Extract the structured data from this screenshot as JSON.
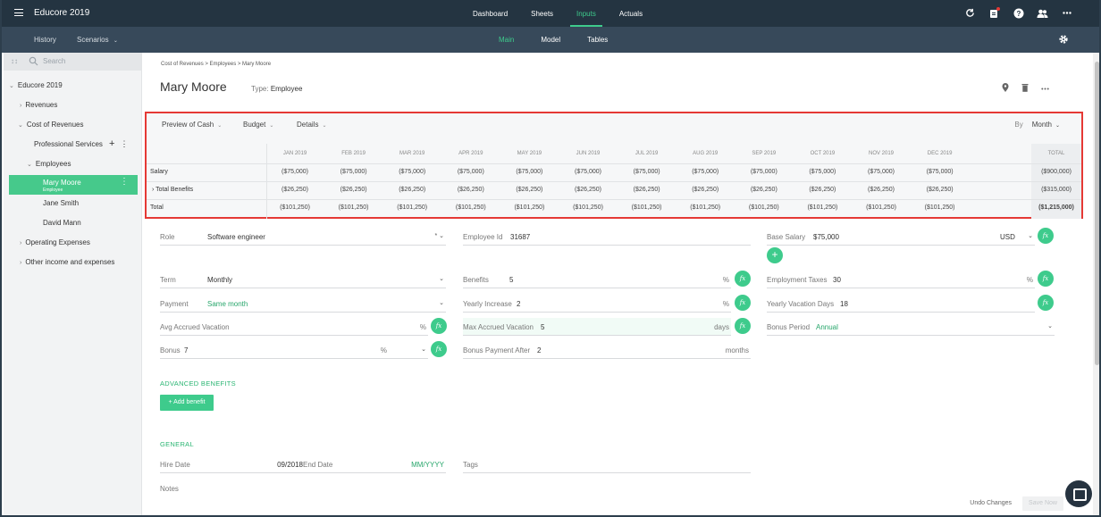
{
  "app": {
    "title": "Educore 2019"
  },
  "topnav": {
    "items": [
      "Dashboard",
      "Sheets",
      "Inputs",
      "Actuals"
    ],
    "active": "Inputs"
  },
  "subbar": {
    "history": "History",
    "scenarios": "Scenarios",
    "tabs": [
      "Main",
      "Model",
      "Tables"
    ],
    "active_tab": "Main"
  },
  "sidebar": {
    "search_placeholder": "Search",
    "items": {
      "root": "Educore 2019",
      "revenues": "Revenues",
      "cost_of_revenues": "Cost of Revenues",
      "professional_services": "Professional Services",
      "employees": "Employees",
      "mary": "Mary Moore",
      "mary_sub": "Employee",
      "jane": "Jane Smith",
      "david": "David Mann",
      "opex": "Operating Expenses",
      "other": "Other income and expenses"
    }
  },
  "page": {
    "breadcrumb": "Cost of Revenues > Employees > Mary Moore",
    "title": "Mary Moore",
    "type_label": "Type:",
    "type_value": "Employee"
  },
  "preview": {
    "dropdowns": [
      "Preview of Cash",
      "Budget",
      "Details"
    ],
    "by_label": "By",
    "by_value": "Month",
    "months": [
      "JAN 2019",
      "FEB 2019",
      "MAR 2019",
      "APR 2019",
      "MAY 2019",
      "JUN 2019",
      "JUL 2019",
      "AUG 2019",
      "SEP 2019",
      "OCT 2019",
      "NOV 2019",
      "DEC 2019"
    ],
    "total_header": "TOTAL",
    "rows": [
      {
        "label": "Salary",
        "values": [
          "($75,000)",
          "($75,000)",
          "($75,000)",
          "($75,000)",
          "($75,000)",
          "($75,000)",
          "($75,000)",
          "($75,000)",
          "($75,000)",
          "($75,000)",
          "($75,000)",
          "($75,000)"
        ],
        "total": "($900,000)"
      },
      {
        "label": "Total Benefits",
        "values": [
          "($26,250)",
          "($26,250)",
          "($26,250)",
          "($26,250)",
          "($26,250)",
          "($26,250)",
          "($26,250)",
          "($26,250)",
          "($26,250)",
          "($26,250)",
          "($26,250)",
          "($26,250)"
        ],
        "total": "($315,000)"
      },
      {
        "label": "Total",
        "values": [
          "($101,250)",
          "($101,250)",
          "($101,250)",
          "($101,250)",
          "($101,250)",
          "($101,250)",
          "($101,250)",
          "($101,250)",
          "($101,250)",
          "($101,250)",
          "($101,250)",
          "($101,250)"
        ],
        "total": "($1,215,000)"
      }
    ]
  },
  "form": {
    "role": {
      "label": "Role",
      "value": "Software engineer"
    },
    "employee_id": {
      "label": "Employee Id",
      "value": "31687"
    },
    "base_salary": {
      "label": "Base Salary",
      "value": "$75,000",
      "currency": "USD"
    },
    "term": {
      "label": "Term",
      "value": "Monthly"
    },
    "benefits": {
      "label": "Benefits",
      "value": "5",
      "unit": "%"
    },
    "employment_taxes": {
      "label": "Employment Taxes",
      "value": "30",
      "unit": "%"
    },
    "payment": {
      "label": "Payment",
      "value": "Same month"
    },
    "yearly_increase": {
      "label": "Yearly Increase",
      "value": "2",
      "unit": "%"
    },
    "yearly_vacation": {
      "label": "Yearly Vacation Days",
      "value": "18"
    },
    "avg_vacation": {
      "label": "Avg Accrued Vacation",
      "value": "",
      "unit": "%"
    },
    "max_vacation": {
      "label": "Max Accrued Vacation",
      "value": "5",
      "unit": "days"
    },
    "bonus_period": {
      "label": "Bonus Period",
      "value": "Annual"
    },
    "bonus": {
      "label": "Bonus",
      "value": "7",
      "unit": "%"
    },
    "bonus_after": {
      "label": "Bonus Payment After",
      "value": "2",
      "unit": "months"
    },
    "fx_label": "fx"
  },
  "advanced": {
    "title": "ADVANCED BENEFITS",
    "add_button": "+ Add benefit"
  },
  "general": {
    "title": "GENERAL",
    "hire_date": {
      "label": "Hire Date",
      "value": "09/2018"
    },
    "end_date": {
      "label": "End Date",
      "value": "MM/YYYY"
    },
    "tags": {
      "label": "Tags"
    },
    "notes": {
      "label": "Notes"
    }
  },
  "footer": {
    "undo": "Undo Changes",
    "save": "Save Now"
  }
}
